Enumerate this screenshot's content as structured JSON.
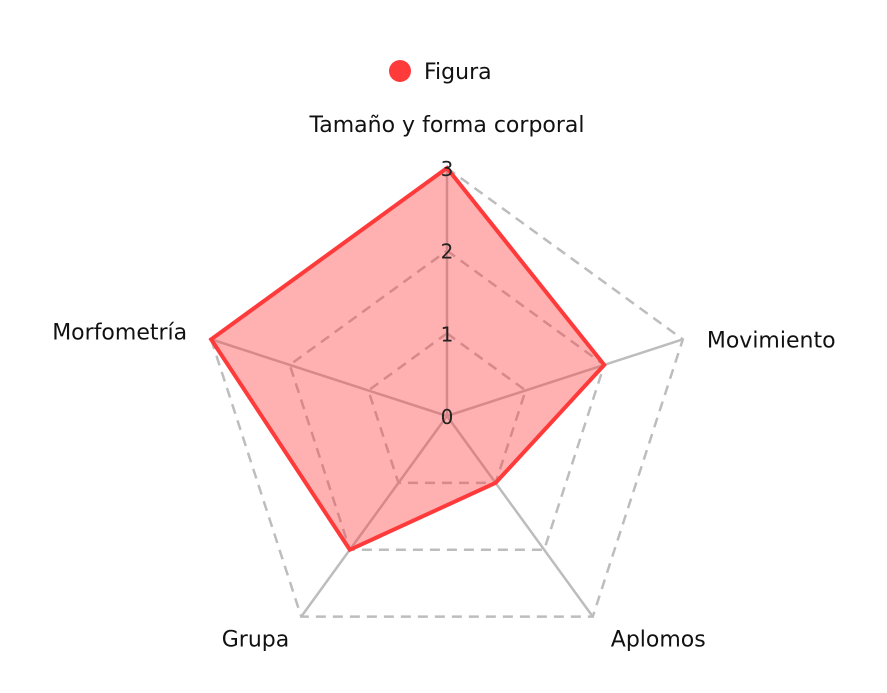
{
  "chart_data": {
    "type": "radar",
    "title": "",
    "axes": [
      "Tamaño y forma corporal",
      "Movimiento",
      "Aplomos",
      "Grupa",
      "Morfometría"
    ],
    "range": [
      0,
      3
    ],
    "ticks": [
      "0",
      "1",
      "2",
      "3"
    ],
    "grid": true,
    "grid_style": "dashed",
    "legend_position": "top",
    "series": [
      {
        "name": "Figura",
        "values": [
          3,
          2,
          1,
          2,
          3
        ],
        "color": "#ff3a3a",
        "fill": "rgba(255, 58, 58, 0.4)"
      }
    ]
  },
  "colors": {
    "grid": "#bdbdbd",
    "spoke": "#bdbdbd"
  }
}
